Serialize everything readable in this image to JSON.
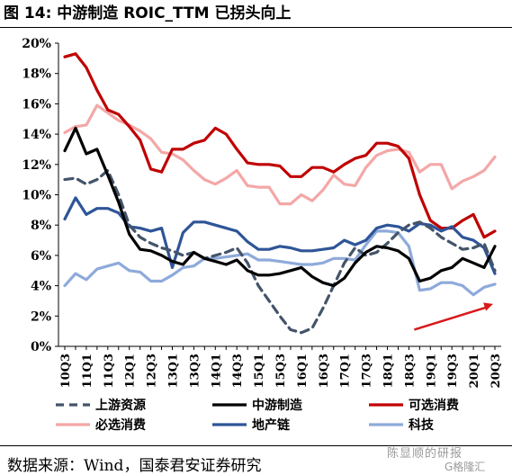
{
  "header": {
    "title": "图 14:  中游制造 ROIC_TTM 已拐头向上"
  },
  "footer": {
    "source": "数据来源：Wind，国泰君安证券研究"
  },
  "watermark": {
    "text": "陈显顺的研报",
    "sub": "G格隆汇"
  },
  "colors": {
    "upstream": "#44546a",
    "midstream": "#000000",
    "optional": "#c00000",
    "staple": "#f4a7a7",
    "property": "#2e5597",
    "tech": "#8eaadb",
    "arrow": "#d7191c"
  },
  "chart_data": {
    "type": "line",
    "title": "",
    "xlabel": "",
    "ylabel": "",
    "ylim": [
      0,
      20
    ],
    "yticks": [
      "0%",
      "2%",
      "4%",
      "6%",
      "8%",
      "10%",
      "12%",
      "14%",
      "16%",
      "18%",
      "20%"
    ],
    "grid": false,
    "legend": "bottom",
    "x": [
      "10Q3",
      "10Q4",
      "11Q1",
      "11Q2",
      "11Q3",
      "11Q4",
      "12Q1",
      "12Q2",
      "12Q3",
      "12Q4",
      "13Q1",
      "13Q2",
      "13Q3",
      "13Q4",
      "14Q1",
      "14Q2",
      "14Q3",
      "14Q4",
      "15Q1",
      "15Q2",
      "15Q3",
      "15Q4",
      "16Q1",
      "16Q2",
      "16Q3",
      "16Q4",
      "17Q1",
      "17Q2",
      "17Q3",
      "17Q4",
      "18Q1",
      "18Q2",
      "18Q3",
      "18Q4",
      "19Q1",
      "19Q2",
      "19Q3",
      "19Q4",
      "20Q1",
      "20Q2",
      "20Q3"
    ],
    "xtick_labels": [
      "10Q3",
      "11Q1",
      "11Q3",
      "12Q1",
      "12Q3",
      "13Q1",
      "13Q3",
      "14Q1",
      "14Q3",
      "15Q1",
      "15Q3",
      "16Q1",
      "16Q3",
      "17Q1",
      "17Q3",
      "18Q1",
      "18Q3",
      "19Q1",
      "19Q3",
      "20Q1",
      "20Q3"
    ],
    "series": [
      {
        "name": "上游资源",
        "style": "dashed",
        "color_key": "upstream",
        "values": [
          11.0,
          11.1,
          10.7,
          11.0,
          11.6,
          10.0,
          8.0,
          7.2,
          6.8,
          6.5,
          6.3,
          6.0,
          6.2,
          5.8,
          6.0,
          6.2,
          6.5,
          5.5,
          4.0,
          3.0,
          2.0,
          1.1,
          0.9,
          1.2,
          2.5,
          4.0,
          5.5,
          6.5,
          6.0,
          6.2,
          6.8,
          7.5,
          8.0,
          8.2,
          7.8,
          7.2,
          6.8,
          6.4,
          6.5,
          6.8,
          5.0
        ]
      },
      {
        "name": "中游制造",
        "style": "solid",
        "color_key": "midstream",
        "values": [
          12.9,
          14.4,
          12.7,
          13.0,
          11.3,
          9.5,
          7.4,
          6.4,
          6.3,
          6.0,
          5.6,
          5.4,
          6.2,
          5.8,
          5.6,
          5.4,
          5.7,
          5.0,
          4.7,
          4.7,
          4.8,
          5.0,
          5.2,
          4.6,
          4.2,
          4.0,
          4.5,
          5.5,
          6.2,
          6.6,
          6.5,
          6.3,
          5.8,
          4.3,
          4.5,
          5.0,
          5.2,
          5.8,
          5.5,
          5.2,
          6.6
        ]
      },
      {
        "name": "可选消费",
        "style": "solid",
        "color_key": "optional",
        "values": [
          19.1,
          19.3,
          18.4,
          16.9,
          15.6,
          15.3,
          14.5,
          13.6,
          11.7,
          11.5,
          13.0,
          13.0,
          13.4,
          13.6,
          14.4,
          14.0,
          13.0,
          12.1,
          12.0,
          12.0,
          11.9,
          11.2,
          11.2,
          11.8,
          11.8,
          11.5,
          12.0,
          12.4,
          12.6,
          13.4,
          13.4,
          13.2,
          12.4,
          10.0,
          8.3,
          7.8,
          7.8,
          8.3,
          8.7,
          7.2,
          7.6
        ]
      },
      {
        "name": "必选消费",
        "style": "solid",
        "color_key": "staple",
        "values": [
          14.1,
          14.5,
          14.6,
          15.9,
          15.4,
          14.9,
          14.6,
          14.2,
          13.7,
          12.8,
          12.7,
          12.3,
          11.6,
          11.0,
          10.7,
          11.1,
          11.6,
          10.6,
          10.5,
          10.5,
          9.4,
          9.4,
          10.0,
          9.6,
          10.3,
          11.3,
          10.7,
          10.6,
          11.8,
          12.6,
          12.9,
          13.0,
          12.8,
          11.5,
          12.0,
          12.0,
          10.4,
          10.9,
          11.2,
          11.6,
          12.5
        ]
      },
      {
        "name": "地产链",
        "style": "solid",
        "color_key": "property",
        "values": [
          8.4,
          9.8,
          8.7,
          9.1,
          9.1,
          8.8,
          7.9,
          7.8,
          7.6,
          7.8,
          5.2,
          7.5,
          8.2,
          8.2,
          8.0,
          7.8,
          7.6,
          6.9,
          6.4,
          6.4,
          6.6,
          6.5,
          6.3,
          6.3,
          6.4,
          6.5,
          7.0,
          6.7,
          7.0,
          7.8,
          8.0,
          7.9,
          7.6,
          8.1,
          8.0,
          7.6,
          7.9,
          7.2,
          7.0,
          6.5,
          4.8
        ]
      },
      {
        "name": "科技",
        "style": "solid",
        "color_key": "tech",
        "values": [
          4.0,
          4.8,
          4.4,
          5.1,
          5.3,
          5.5,
          5.0,
          4.9,
          4.3,
          4.3,
          4.7,
          5.2,
          5.3,
          5.8,
          5.8,
          5.9,
          6.0,
          6.1,
          5.7,
          5.7,
          5.6,
          5.5,
          5.4,
          5.4,
          5.5,
          5.8,
          5.8,
          5.7,
          6.7,
          7.6,
          7.6,
          7.5,
          6.6,
          3.7,
          3.8,
          4.2,
          4.2,
          4.0,
          3.4,
          3.9,
          4.1
        ]
      }
    ]
  }
}
